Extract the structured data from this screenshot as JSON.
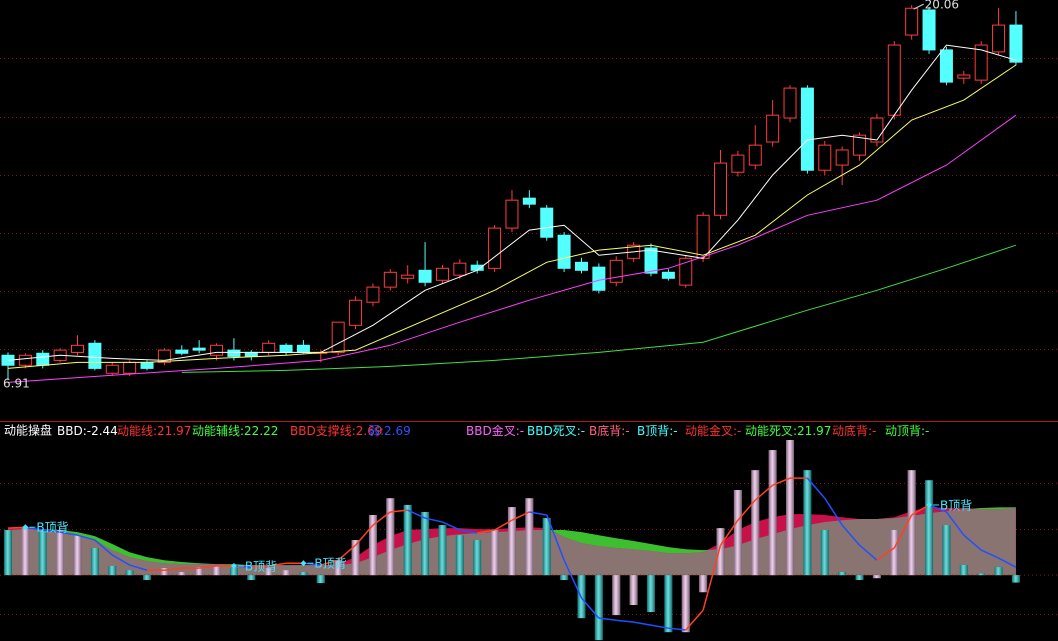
{
  "chart_data": [
    {
      "type": "candlestick",
      "xlim": [
        -0.46,
        60.42
      ],
      "ylim": [
        5.51,
        20.24
      ],
      "up_color": "#ff3c3c",
      "down_color": "#54ffff",
      "open": [
        7.78,
        7.43,
        7.85,
        7.6,
        7.88,
        8.2,
        7.15,
        7.15,
        7.53,
        7.53,
        7.96,
        8.03,
        7.78,
        7.96,
        7.88,
        7.88,
        8.13,
        8.13,
        7.85,
        7.88,
        8.83,
        9.64,
        10.17,
        10.48,
        10.76,
        10.41,
        10.59,
        10.94,
        10.83,
        12.24,
        13.29,
        12.94,
        11.99,
        11.04,
        10.87,
        10.34,
        11.18,
        11.54,
        10.69,
        10.24,
        11.18,
        12.69,
        14.2,
        14.45,
        15.26,
        16.1,
        17.15,
        14.27,
        14.45,
        14.8,
        15.26,
        16.2,
        19.01,
        19.89,
        18.49,
        17.5,
        17.43,
        18.42,
        19.36
      ],
      "high": [
        7.88,
        7.85,
        7.96,
        8.03,
        8.48,
        8.31,
        7.53,
        7.6,
        7.6,
        8.03,
        8.13,
        8.31,
        8.2,
        8.38,
        7.96,
        8.31,
        8.2,
        8.31,
        7.96,
        8.94,
        9.85,
        10.3,
        10.8,
        10.94,
        11.75,
        10.95,
        11.15,
        11.1,
        12.35,
        13.57,
        13.57,
        13.05,
        12.1,
        11.2,
        11.0,
        11.25,
        11.75,
        11.7,
        10.8,
        11.3,
        12.8,
        14.98,
        14.95,
        15.85,
        16.73,
        17.25,
        17.25,
        15.3,
        15.1,
        15.6,
        16.25,
        18.8,
        20.06,
        20.0,
        18.6,
        17.75,
        18.8,
        19.96,
        19.85
      ],
      "low": [
        6.91,
        7.32,
        7.32,
        7.53,
        7.78,
        7.25,
        7.05,
        7.05,
        7.25,
        7.43,
        7.78,
        7.85,
        7.6,
        7.6,
        7.6,
        7.78,
        7.78,
        7.85,
        7.53,
        7.78,
        8.7,
        9.5,
        10.05,
        10.3,
        10.2,
        10.3,
        10.45,
        10.65,
        10.7,
        12.1,
        12.94,
        11.8,
        10.7,
        10.65,
        9.95,
        10.2,
        11.05,
        10.55,
        10.4,
        10.15,
        11.05,
        12.55,
        14.05,
        14.3,
        15.1,
        15.95,
        14.15,
        14.1,
        13.75,
        14.6,
        15.1,
        16.05,
        18.85,
        18.35,
        17.25,
        17.3,
        17.3,
        18.3,
        17.95
      ],
      "close": [
        7.43,
        7.78,
        7.43,
        7.96,
        8.13,
        7.32,
        7.43,
        7.53,
        7.32,
        7.96,
        7.85,
        7.96,
        8.13,
        7.74,
        7.74,
        8.2,
        7.88,
        7.88,
        7.88,
        8.94,
        9.71,
        10.17,
        10.69,
        10.59,
        10.34,
        10.83,
        11.01,
        10.76,
        12.24,
        13.22,
        13.08,
        11.92,
        10.83,
        10.76,
        10.06,
        11.11,
        11.64,
        10.66,
        10.48,
        11.18,
        12.69,
        14.52,
        14.8,
        15.15,
        16.2,
        17.15,
        14.27,
        15.15,
        14.98,
        15.5,
        16.1,
        18.66,
        19.95,
        18.49,
        17.36,
        17.61,
        18.66,
        19.36,
        18.06
      ],
      "series": [
        {
          "color": "#ffffff",
          "x": [
            0,
            3,
            6,
            9,
            12,
            15,
            18,
            21,
            24,
            27,
            30,
            32,
            34,
            37,
            40,
            42,
            44,
            46,
            48,
            50,
            52,
            54,
            56,
            58
          ],
          "values": [
            7.6,
            7.78,
            7.67,
            7.6,
            7.88,
            7.88,
            7.88,
            8.83,
            10.06,
            10.76,
            12.17,
            12.34,
            11.29,
            11.47,
            11.18,
            12.52,
            14.1,
            15.33,
            15.5,
            15.33,
            17.08,
            18.66,
            18.49,
            18.13
          ]
        },
        {
          "color": "#ffff66",
          "x": [
            0,
            4,
            8,
            12,
            16,
            20,
            24,
            28,
            31,
            34,
            37,
            40,
            43,
            46,
            49,
            52,
            55,
            58
          ],
          "values": [
            7.32,
            7.53,
            7.53,
            7.67,
            7.78,
            7.96,
            9.01,
            10.06,
            11.04,
            11.47,
            11.64,
            11.29,
            11.99,
            13.4,
            14.45,
            16.03,
            16.73,
            17.96
          ]
        },
        {
          "color": "#ff40ff",
          "x": [
            0,
            6,
            12,
            18,
            22,
            26,
            30,
            34,
            38,
            42,
            46,
            50,
            54,
            58
          ],
          "values": [
            6.83,
            7.08,
            7.32,
            7.6,
            8.13,
            8.94,
            9.71,
            10.41,
            10.83,
            11.64,
            12.69,
            13.22,
            14.45,
            16.2
          ]
        },
        {
          "color": "#40e040",
          "x": [
            10,
            16,
            22,
            28,
            34,
            40,
            46,
            50,
            54,
            58
          ],
          "values": [
            7.18,
            7.25,
            7.39,
            7.6,
            7.88,
            8.24,
            9.36,
            10.06,
            10.83,
            11.64
          ]
        }
      ],
      "high_label": 20.06,
      "low_label": 6.91
    },
    {
      "type": "combo",
      "title": "动能操盘",
      "xlim": [
        -0.46,
        60.42
      ],
      "ylim": [
        -21.6,
        50.2
      ],
      "bars": {
        "values": [
          14.8,
          15.4,
          14.8,
          14.8,
          13.1,
          8.9,
          3.0,
          1.6,
          -1.6,
          2.3,
          1.0,
          2.6,
          3.0,
          2.3,
          -1.6,
          2.3,
          1.6,
          1.0,
          -2.6,
          4.9,
          11.5,
          19.7,
          25.2,
          23.0,
          20.7,
          16.4,
          13.1,
          11.5,
          14.8,
          22.3,
          25.2,
          18.7,
          -1.6,
          -14.1,
          -21.3,
          -13.1,
          -9.8,
          -12.1,
          -18.7,
          -18.7,
          -5.6,
          15.4,
          27.9,
          34.4,
          41.0,
          44.3,
          34.4,
          14.8,
          1.0,
          -1.6,
          -1.0,
          14.8,
          34.4,
          31.1,
          16.4,
          3.3,
          0.5,
          2.6,
          -2.44
        ],
        "colors": [
          "#18c8c8",
          "#e4b4e0",
          "#18c8c8",
          "#e4b4e0",
          "#e4b4e0",
          "#18c8c8",
          "#18c8c8",
          "#18c8c8",
          "#18c8c8",
          "#e4b4e0",
          "#e4b4e0",
          "#e4b4e0",
          "#e4b4e0",
          "#18c8c8",
          "#18c8c8",
          "#e4b4e0",
          "#e4b4e0",
          "#18c8c8",
          "#18c8c8",
          "#e4b4e0",
          "#e4b4e0",
          "#e4b4e0",
          "#e4b4e0",
          "#18c8c8",
          "#18c8c8",
          "#18c8c8",
          "#18c8c8",
          "#18c8c8",
          "#e4b4e0",
          "#e4b4e0",
          "#e4b4e0",
          "#18c8c8",
          "#18c8c8",
          "#18c8c8",
          "#18c8c8",
          "#e4b4e0",
          "#e4b4e0",
          "#18c8c8",
          "#18c8c8",
          "#e4b4e0",
          "#e4b4e0",
          "#e4b4e0",
          "#e4b4e0",
          "#e4b4e0",
          "#e4b4e0",
          "#e4b4e0",
          "#18c8c8",
          "#18c8c8",
          "#18c8c8",
          "#18c8c8",
          "#e4b4e0",
          "#e4b4e0",
          "#e4b4e0",
          "#18c8c8",
          "#18c8c8",
          "#18c8c8",
          "#18c8c8",
          "#18c8c8",
          "#18c8c8"
        ]
      },
      "momentum": {
        "color": "#c8104a",
        "values": [
          15.4,
          15.4,
          15.1,
          14.4,
          13.1,
          11.5,
          8.2,
          5.9,
          4.6,
          3.9,
          3.6,
          3.6,
          3.6,
          3.3,
          3.3,
          3.3,
          3.3,
          3.3,
          3.3,
          3.6,
          5.9,
          9.8,
          12.8,
          14.8,
          15.1,
          15.4,
          15.4,
          15.1,
          15.1,
          15.4,
          15.7,
          15.4,
          12.5,
          10.5,
          9.5,
          8.9,
          8.5,
          7.9,
          7.2,
          7.2,
          7.5,
          10.5,
          14.8,
          17.4,
          19.0,
          20.0,
          20.0,
          19.7,
          19.0,
          18.4,
          18.4,
          19.0,
          21.0,
          22.3,
          22.0,
          22.0,
          21.6,
          21.6,
          21.97
        ]
      },
      "momentum_aux": {
        "color": "#3cc030",
        "values": [
          14.8,
          15.1,
          15.1,
          14.8,
          14.1,
          12.8,
          10.2,
          7.5,
          5.9,
          4.9,
          4.3,
          3.9,
          3.6,
          3.6,
          3.3,
          3.3,
          3.3,
          3.3,
          3.3,
          3.3,
          3.9,
          5.9,
          8.2,
          10.2,
          11.8,
          12.8,
          13.4,
          13.8,
          14.1,
          14.4,
          14.8,
          14.8,
          14.8,
          14.1,
          13.1,
          12.1,
          11.2,
          10.2,
          9.2,
          8.5,
          8.2,
          8.5,
          9.8,
          11.8,
          13.4,
          15.1,
          16.4,
          17.4,
          18.0,
          18.4,
          18.4,
          18.7,
          19.4,
          20.3,
          21.0,
          21.6,
          22.0,
          22.2,
          22.22
        ]
      },
      "area_color": "#8a7472",
      "support": {
        "up_color": "#ff4020",
        "down_color": "#2050ff",
        "values": [
          15.4,
          15.7,
          14.8,
          14.1,
          13.1,
          11.5,
          6.6,
          3.3,
          1.6,
          1.6,
          2.3,
          2.3,
          3.0,
          3.0,
          2.6,
          3.0,
          3.9,
          3.9,
          3.3,
          4.9,
          9.8,
          16.4,
          20.7,
          21.3,
          18.7,
          17.4,
          14.8,
          13.8,
          14.8,
          18.0,
          20.7,
          19.7,
          4.9,
          -7.5,
          -14.1,
          -14.8,
          -15.4,
          -16.4,
          -17.4,
          -18.0,
          -11.5,
          9.8,
          18.0,
          24.6,
          29.5,
          31.8,
          31.8,
          25.2,
          16.4,
          9.8,
          4.9,
          8.9,
          19.7,
          23.0,
          20.7,
          13.1,
          8.2,
          5.6,
          2.6
        ]
      },
      "annotations": [
        {
          "text": "B顶背",
          "x": 1
        },
        {
          "text": "B顶背",
          "x": 13
        },
        {
          "text": "B顶背",
          "x": 17
        },
        {
          "text": "B顶背",
          "x": 53
        }
      ],
      "annotation_color": "#40e8ff",
      "legend": [
        {
          "label": "BBD:",
          "value": -2.44,
          "color": "#ffffff"
        },
        {
          "label": "动能线:",
          "value": 21.97,
          "color": "#ff3030"
        },
        {
          "label": "动能辅线:",
          "value": 22.22,
          "color": "#40ff40"
        },
        {
          "label": "BBD支撑线:",
          "value": 2.69,
          "color": "#ff3030"
        },
        {
          "label": "弱:",
          "value": 2.69,
          "color": "#3050ff"
        },
        {
          "label": "BBD金叉:-",
          "color": "#ff60ff"
        },
        {
          "label": "BBD死叉:-",
          "color": "#40ffff"
        },
        {
          "label": "B底背:-",
          "color": "#ff6080"
        },
        {
          "label": "B顶背:-",
          "color": "#40ffff"
        },
        {
          "label": "动能金叉:-",
          "color": "#ff3030"
        },
        {
          "label": "动能死叉:",
          "value": 21.97,
          "color": "#40ff40"
        },
        {
          "label": "动底背:-",
          "color": "#ff3030"
        },
        {
          "label": "动顶背:-",
          "color": "#40ff40"
        }
      ]
    }
  ]
}
